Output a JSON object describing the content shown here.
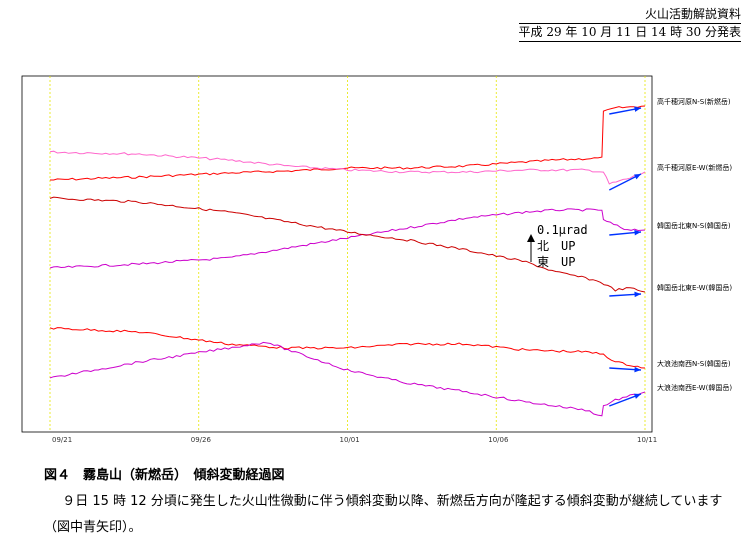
{
  "header": {
    "line1": "火山活動解説資料",
    "line2": "平成 29 年 10 月 11 日 14 時 30 分発表"
  },
  "chart_data": {
    "type": "line",
    "title": "",
    "x_ticks": [
      "09/21",
      "09/26",
      "10/01",
      "10/06",
      "10/11"
    ],
    "x_tick_days": [
      0,
      5,
      10,
      15,
      20
    ],
    "event_day": 18.6,
    "grid": "vertical dashed yellow at each tick",
    "scale_annotation": {
      "line1": "0.1μrad",
      "line2": "北　UP",
      "line3": "東　UP"
    },
    "series": [
      {
        "name": "高千穂河原N-S(新燃岳)",
        "color": "#ff0000",
        "points": [
          [
            0,
            80
          ],
          [
            3,
            77
          ],
          [
            6,
            73
          ],
          [
            8,
            71
          ],
          [
            10,
            68
          ],
          [
            12,
            68
          ],
          [
            14,
            66
          ],
          [
            16,
            62
          ],
          [
            17,
            60
          ],
          [
            18.55,
            58
          ],
          [
            18.6,
            12
          ],
          [
            19,
            8
          ],
          [
            20,
            6
          ]
        ]
      },
      {
        "name": "高千穂河原E-W(新燃岳)",
        "color": "#ff66cc",
        "points": [
          [
            0,
            52
          ],
          [
            3,
            54
          ],
          [
            6,
            60
          ],
          [
            8,
            66
          ],
          [
            10,
            70
          ],
          [
            12,
            72
          ],
          [
            14,
            72
          ],
          [
            16,
            70
          ],
          [
            18,
            70
          ],
          [
            18.6,
            72
          ],
          [
            18.8,
            84
          ],
          [
            19.5,
            78
          ],
          [
            20,
            72
          ]
        ]
      },
      {
        "name": "韓国岳北東N-S(韓国岳)",
        "color": "#cc00cc",
        "points": [
          [
            0,
            168
          ],
          [
            3,
            164
          ],
          [
            6,
            158
          ],
          [
            8,
            148
          ],
          [
            10,
            138
          ],
          [
            12,
            128
          ],
          [
            14,
            118
          ],
          [
            16,
            112
          ],
          [
            17,
            110
          ],
          [
            18.55,
            110
          ],
          [
            18.6,
            120
          ],
          [
            19.3,
            129
          ],
          [
            20,
            130
          ]
        ]
      },
      {
        "name": "韓国岳北東E-W(韓国岳)",
        "color": "#cc0000",
        "points": [
          [
            0,
            98
          ],
          [
            3,
            102
          ],
          [
            6,
            112
          ],
          [
            8,
            122
          ],
          [
            10,
            132
          ],
          [
            12,
            140
          ],
          [
            14,
            150
          ],
          [
            16,
            162
          ],
          [
            17,
            172
          ],
          [
            18,
            178
          ],
          [
            18.5,
            182
          ],
          [
            19,
            190
          ],
          [
            19.5,
            188
          ],
          [
            20,
            192
          ]
        ]
      },
      {
        "name": "大浪池南西N-S(韓国岳)",
        "color": "#ff0000",
        "points": [
          [
            0,
            228
          ],
          [
            3,
            232
          ],
          [
            6,
            244
          ],
          [
            8,
            248
          ],
          [
            10,
            248
          ],
          [
            12,
            244
          ],
          [
            14,
            244
          ],
          [
            16,
            250
          ],
          [
            18,
            252
          ],
          [
            18.6,
            254
          ],
          [
            19,
            262
          ],
          [
            20,
            268
          ]
        ]
      },
      {
        "name": "大浪池南西E-W(韓国岳)",
        "color": "#cc00cc",
        "points": [
          [
            0,
            278
          ],
          [
            3,
            262
          ],
          [
            6,
            248
          ],
          [
            7.3,
            242
          ],
          [
            8,
            250
          ],
          [
            10,
            270
          ],
          [
            12,
            283
          ],
          [
            14,
            292
          ],
          [
            16,
            302
          ],
          [
            18,
            310
          ],
          [
            18.55,
            316
          ],
          [
            18.6,
            306
          ],
          [
            19,
            300
          ],
          [
            20,
            292
          ]
        ]
      }
    ]
  },
  "caption": {
    "title": "図４　霧島山（新燃岳）　傾斜変動経過図",
    "body": "９日 15 時 12 分頃に発生した火山性微動に伴う傾斜変動以降、新燃岳方向が隆起する傾斜変動が継続しています（図中青矢印）。"
  }
}
